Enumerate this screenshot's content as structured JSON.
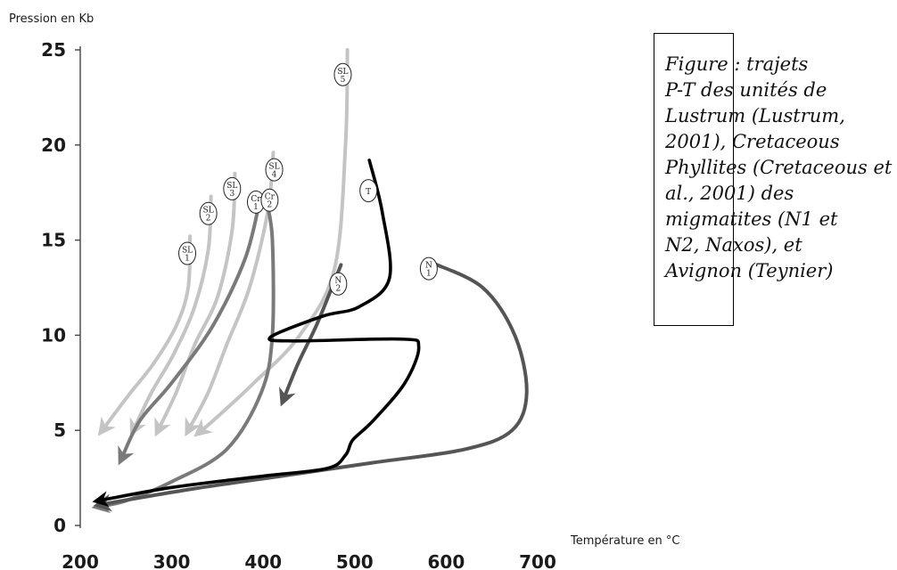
{
  "chart_data": {
    "type": "line",
    "ylabel": "Pression en Kb",
    "xlabel": "Température en °C",
    "xlim": [
      200,
      700
    ],
    "ylim": [
      0,
      25
    ],
    "x_ticks": [
      200,
      300,
      400,
      500,
      600,
      700
    ],
    "y_ticks": [
      0,
      5,
      10,
      15,
      20,
      25
    ],
    "grid": false,
    "series": [
      {
        "name": "SL1",
        "label_main": "SL",
        "label_sub": "1",
        "color": "#c4c4c4",
        "x": [
          320,
          318,
          305,
          280,
          252,
          224
        ],
        "y": [
          15.2,
          12.5,
          10.5,
          8.5,
          6.8,
          5.0
        ],
        "label_at": [
          317,
          14.3
        ]
      },
      {
        "name": "SL2",
        "label_main": "SL",
        "label_sub": "2",
        "color": "#c4c4c4",
        "x": [
          343,
          340,
          325,
          302,
          278,
          258
        ],
        "y": [
          17.3,
          14.5,
          11.5,
          9.0,
          7.0,
          5.0
        ],
        "label_at": [
          340,
          16.4
        ]
      },
      {
        "name": "SL3",
        "label_main": "SL",
        "label_sub": "3",
        "color": "#c4c4c4",
        "x": [
          369,
          366,
          350,
          325,
          305,
          285
        ],
        "y": [
          18.5,
          15.5,
          12.0,
          9.5,
          7.0,
          5.0
        ],
        "label_at": [
          366,
          17.7
        ]
      },
      {
        "name": "SL4",
        "label_main": "SL",
        "label_sub": "4",
        "color": "#c4c4c4",
        "x": [
          411,
          405,
          385,
          360,
          340,
          318
        ],
        "y": [
          19.6,
          16.5,
          12.5,
          9.5,
          7.0,
          5.0
        ],
        "label_at": [
          412,
          18.7
        ]
      },
      {
        "name": "SL5",
        "label_main": "SL",
        "label_sub": "5",
        "color": "#c4c4c4",
        "x": [
          492,
          490,
          478,
          440,
          390,
          345,
          330
        ],
        "y": [
          25.0,
          20.0,
          13.5,
          10.0,
          7.5,
          5.5,
          4.9
        ],
        "label_at": [
          487,
          23.7
        ]
      },
      {
        "name": "Cr1",
        "label_main": "Cr",
        "label_sub": "1",
        "color": "#7a7a7a",
        "x": [
          396,
          380,
          345,
          300,
          265,
          245
        ],
        "y": [
          17.0,
          14.0,
          10.5,
          7.5,
          5.5,
          3.5
        ],
        "label_at": [
          392,
          17.0
        ]
      },
      {
        "name": "Cr2",
        "label_main": "Cr",
        "label_sub": "2",
        "color": "#7a7a7a",
        "x": [
          404,
          410,
          410,
          398,
          360,
          300,
          250,
          220
        ],
        "y": [
          17.0,
          15.0,
          10.0,
          7.0,
          4.0,
          2.3,
          1.3,
          1.0
        ],
        "label_at": [
          407,
          17.1
        ]
      },
      {
        "name": "N2",
        "label_main": "N",
        "label_sub": "2",
        "color": "#555555",
        "x": [
          485,
          475,
          458,
          438,
          422
        ],
        "y": [
          13.7,
          12.5,
          10.5,
          8.5,
          6.6
        ],
        "label_at": [
          482,
          12.7
        ]
      },
      {
        "name": "T",
        "label_main": "T",
        "label_sub": "",
        "color": "#000000",
        "x": [
          516,
          530,
          538,
          505,
          465,
          408,
          435,
          550,
          570,
          555,
          520,
          498,
          490,
          470,
          400,
          300,
          220
        ],
        "y": [
          19.2,
          16.5,
          13.0,
          11.5,
          11.0,
          9.9,
          9.7,
          9.8,
          9.4,
          7.5,
          5.5,
          4.5,
          3.7,
          3.0,
          2.6,
          2.0,
          1.3
        ],
        "label_at": [
          515,
          17.6
        ]
      },
      {
        "name": "N1",
        "label_main": "N",
        "label_sub": "1",
        "color": "#555555",
        "x": [
          585,
          640,
          675,
          688,
          672,
          620,
          520,
          420,
          320,
          222
        ],
        "y": [
          13.8,
          12.5,
          10.0,
          7.0,
          5.0,
          4.0,
          3.3,
          2.6,
          1.9,
          1.1
        ],
        "label_at": [
          581,
          13.5
        ]
      }
    ]
  },
  "caption": {
    "lines": [
      "Figure : trajets",
      "P-T des unités de",
      "Lustrum (Lustrum,",
      "2001), Cretaceous",
      "Phyllites (Cretaceous et",
      "al., 2001) des",
      "migmatites (N1 et",
      "N2, Naxos), et",
      "Avignon (Teynier)"
    ]
  }
}
